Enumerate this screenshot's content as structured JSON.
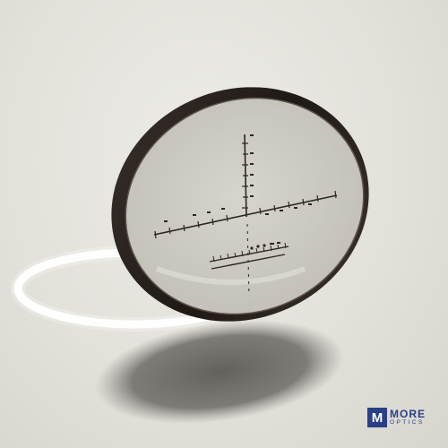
{
  "brand": {
    "word_top": "MORE",
    "word_bottom": "OPTICS",
    "mark_letter": "M",
    "color": "#2a3f86"
  },
  "scene": {
    "subject": "reticle-lens",
    "background_color": "#e4e3dc",
    "lens_rim_color": "#2b2420"
  }
}
